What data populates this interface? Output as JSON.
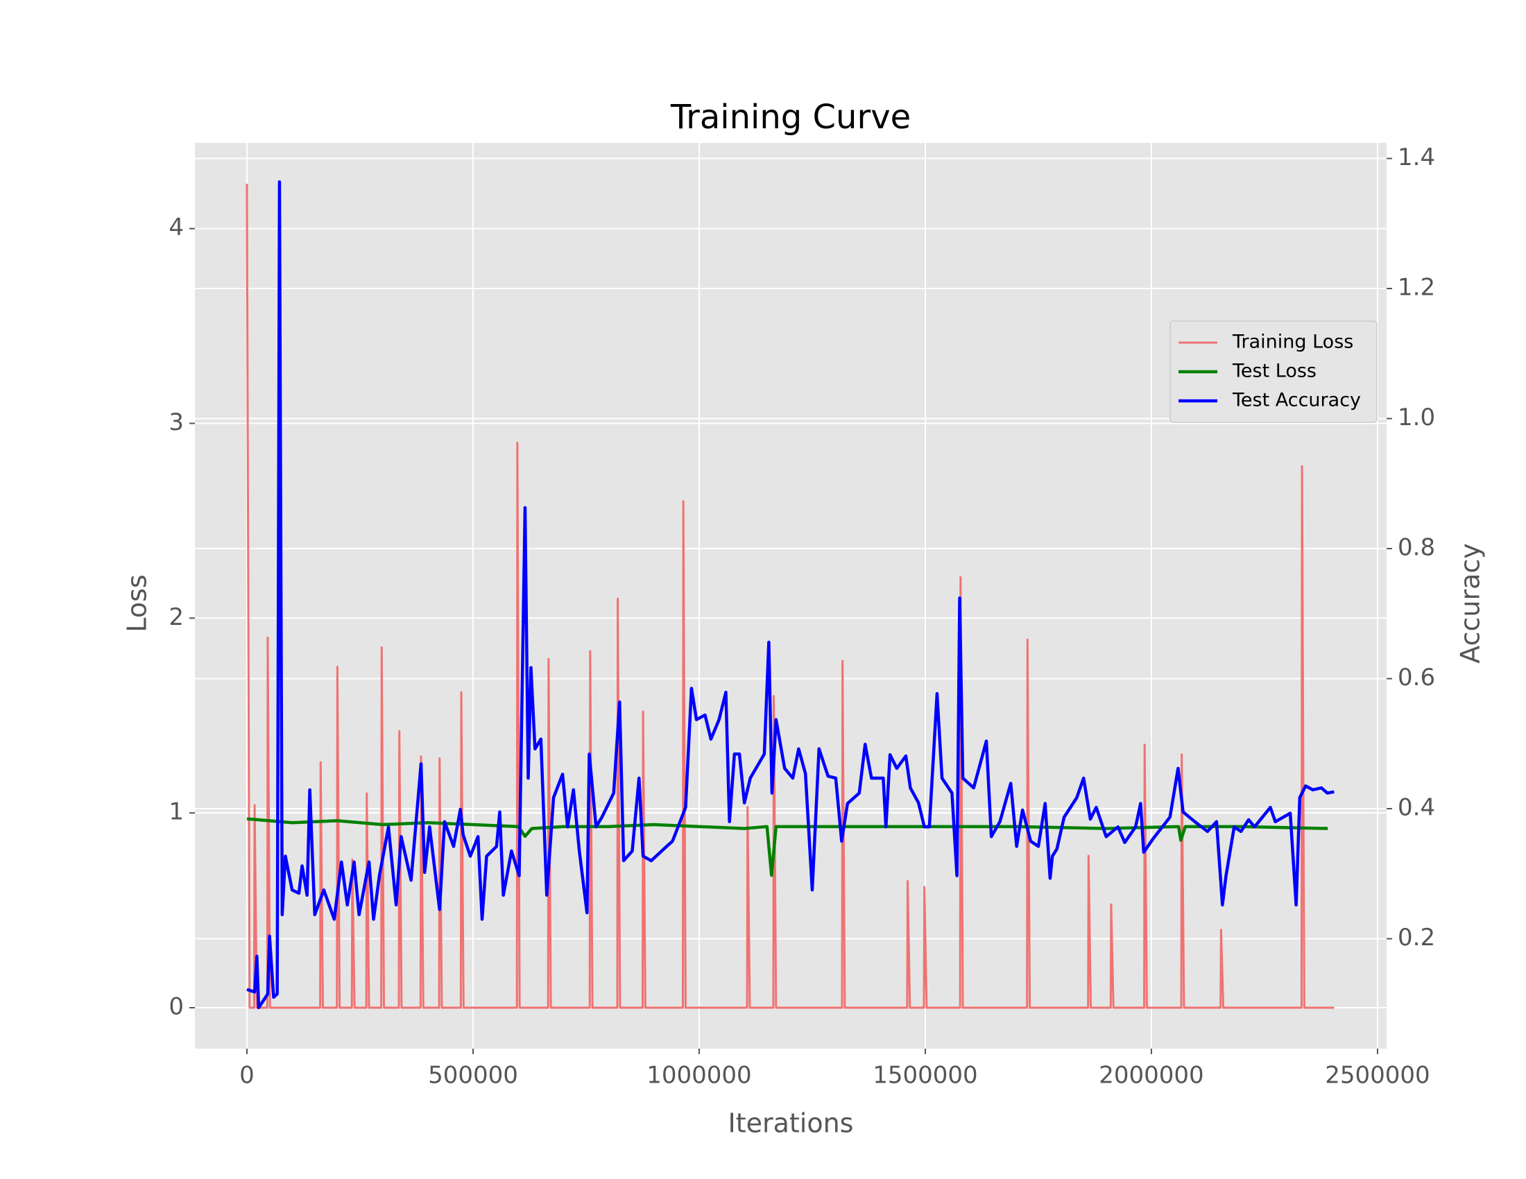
{
  "chart_data": {
    "type": "line",
    "title": "Training Curve",
    "x_label": "Iterations",
    "y_label": "Loss",
    "y2_label": "Accuracy",
    "xlim": [
      -115000,
      2520000
    ],
    "xticks": [
      0,
      500000,
      1000000,
      1500000,
      2000000,
      2500000
    ],
    "ylim": [
      -0.21,
      4.44
    ],
    "yticks": [
      0,
      1,
      2,
      3,
      4
    ],
    "y2lim": [
      0.031,
      1.424
    ],
    "y2ticks": [
      0.2,
      0.4,
      0.6,
      0.8,
      {
        "value": 1.0,
        "label": "1.0"
      },
      1.2,
      1.4
    ],
    "grid": true,
    "legend": "center right",
    "series": [
      {
        "name": "Training Loss",
        "color": "#f07272",
        "x": [
          0,
          6000,
          16000,
          17000,
          22000,
          45000,
          46000,
          51000,
          162000,
          163000,
          168000,
          199000,
          200000,
          205000,
          232000,
          233000,
          238000,
          264000,
          265000,
          270000,
          297000,
          298000,
          303000,
          336000,
          337000,
          342000,
          384000,
          385000,
          390000,
          425000,
          426000,
          431000,
          473000,
          474000,
          479000,
          597000,
          598000,
          603000,
          666000,
          667000,
          672000,
          758000,
          759000,
          764000,
          819000,
          820000,
          825000,
          875000,
          876000,
          881000,
          964000,
          965000,
          970000,
          1106000,
          1107000,
          1112000,
          1164000,
          1165000,
          1170000,
          1316000,
          1317000,
          1322000,
          1460000,
          1461000,
          1466000,
          1497000,
          1498000,
          1503000,
          1577000,
          1578000,
          1583000,
          1725000,
          1726000,
          1731000,
          1860000,
          1861000,
          1866000,
          1910000,
          1911000,
          1916000,
          1984000,
          1985000,
          1990000,
          2066000,
          2067000,
          2072000,
          2153000,
          2154000,
          2159000,
          2332000,
          2333000,
          2338000,
          2404000
        ],
        "values": [
          4.23,
          0,
          0,
          1.04,
          0,
          0,
          1.9,
          0,
          0,
          1.26,
          0,
          0,
          1.75,
          0,
          0,
          0.76,
          0,
          0,
          1.1,
          0,
          0,
          1.85,
          0,
          0,
          1.42,
          0,
          0,
          1.29,
          0,
          0,
          1.28,
          0,
          0,
          1.62,
          0,
          0,
          2.9,
          0,
          0,
          1.79,
          0,
          0,
          1.83,
          0,
          0,
          2.1,
          0,
          0,
          1.52,
          0,
          0,
          2.6,
          0,
          0,
          1.03,
          0,
          0,
          1.6,
          0,
          0,
          1.78,
          0,
          0,
          0.65,
          0,
          0,
          0.62,
          0,
          0,
          2.21,
          0,
          0,
          1.89,
          0,
          0,
          0.78,
          0,
          0,
          0.53,
          0,
          0,
          1.35,
          0,
          0,
          1.3,
          0,
          0,
          0.4,
          0,
          0,
          2.78,
          0,
          0
        ]
      },
      {
        "name": "Test Loss",
        "color": "#008000",
        "x": [
          0,
          100000,
          200000,
          300000,
          400000,
          500000,
          600000,
          615000,
          630000,
          700000,
          800000,
          900000,
          1000000,
          1100000,
          1150000,
          1160000,
          1170000,
          1300000,
          1500000,
          1700000,
          1900000,
          2060000,
          2065000,
          2075000,
          2200000,
          2390000
        ],
        "values": [
          0.97,
          0.95,
          0.96,
          0.94,
          0.95,
          0.94,
          0.93,
          0.88,
          0.92,
          0.93,
          0.93,
          0.94,
          0.93,
          0.92,
          0.93,
          0.68,
          0.93,
          0.93,
          0.93,
          0.93,
          0.92,
          0.93,
          0.86,
          0.93,
          0.93,
          0.92
        ]
      },
      {
        "name": "Test Accuracy",
        "color": "#0000ff",
        "axis": "y2",
        "x": [
          0,
          17000,
          22000,
          26000,
          46000,
          50000,
          59000,
          67000,
          72000,
          78000,
          85000,
          100000,
          115000,
          122000,
          133000,
          139000,
          150000,
          170000,
          193000,
          209000,
          222000,
          237000,
          248000,
          270000,
          280000,
          293000,
          313000,
          330000,
          341000,
          363000,
          385000,
          393000,
          404000,
          426000,
          437000,
          457000,
          472000,
          478000,
          494000,
          511000,
          520000,
          530000,
          552000,
          559000,
          567000,
          585000,
          602000,
          615000,
          622000,
          628000,
          637000,
          650000,
          663000,
          678000,
          698000,
          709000,
          722000,
          735000,
          752000,
          757000,
          772000,
          785000,
          811000,
          824000,
          833000,
          852000,
          867000,
          876000,
          894000,
          928000,
          941000,
          970000,
          983000,
          994000,
          1013000,
          1026000,
          1044000,
          1059000,
          1067000,
          1078000,
          1089000,
          1100000,
          1113000,
          1144000,
          1154000,
          1161000,
          1170000,
          1189000,
          1207000,
          1220000,
          1235000,
          1250000,
          1265000,
          1285000,
          1302000,
          1315000,
          1328000,
          1354000,
          1367000,
          1381000,
          1407000,
          1413000,
          1422000,
          1437000,
          1457000,
          1467000,
          1485000,
          1498000,
          1509000,
          1526000,
          1537000,
          1559000,
          1570000,
          1576000,
          1583000,
          1607000,
          1635000,
          1646000,
          1665000,
          1689000,
          1702000,
          1715000,
          1733000,
          1750000,
          1765000,
          1776000,
          1781000,
          1791000,
          1807000,
          1835000,
          1850000,
          1865000,
          1878000,
          1900000,
          1926000,
          1941000,
          1965000,
          1976000,
          1983000,
          2004000,
          2041000,
          2059000,
          2070000,
          2096000,
          2124000,
          2144000,
          2157000,
          2165000,
          2183000,
          2198000,
          2215000,
          2228000,
          2263000,
          2274000,
          2307000,
          2320000,
          2328000,
          2341000,
          2357000,
          2376000,
          2389000,
          2404000
        ],
        "values": [
          0.122,
          0.118,
          0.173,
          0.094,
          0.115,
          0.204,
          0.11,
          0.115,
          1.364,
          0.237,
          0.327,
          0.275,
          0.27,
          0.312,
          0.267,
          0.429,
          0.237,
          0.275,
          0.23,
          0.318,
          0.252,
          0.318,
          0.237,
          0.318,
          0.23,
          0.297,
          0.372,
          0.252,
          0.357,
          0.29,
          0.469,
          0.302,
          0.372,
          0.245,
          0.38,
          0.342,
          0.399,
          0.36,
          0.327,
          0.357,
          0.23,
          0.327,
          0.342,
          0.395,
          0.267,
          0.335,
          0.297,
          0.863,
          0.447,
          0.617,
          0.492,
          0.507,
          0.267,
          0.417,
          0.453,
          0.372,
          0.429,
          0.335,
          0.24,
          0.484,
          0.372,
          0.387,
          0.424,
          0.564,
          0.32,
          0.335,
          0.447,
          0.327,
          0.32,
          0.342,
          0.35,
          0.402,
          0.585,
          0.537,
          0.544,
          0.507,
          0.537,
          0.579,
          0.38,
          0.484,
          0.484,
          0.409,
          0.447,
          0.484,
          0.656,
          0.424,
          0.537,
          0.462,
          0.447,
          0.492,
          0.454,
          0.275,
          0.492,
          0.45,
          0.447,
          0.35,
          0.408,
          0.424,
          0.499,
          0.447,
          0.447,
          0.372,
          0.483,
          0.462,
          0.481,
          0.432,
          0.409,
          0.372,
          0.372,
          0.577,
          0.447,
          0.424,
          0.297,
          0.724,
          0.447,
          0.432,
          0.504,
          0.357,
          0.38,
          0.439,
          0.342,
          0.398,
          0.35,
          0.342,
          0.408,
          0.293,
          0.327,
          0.338,
          0.387,
          0.417,
          0.447,
          0.384,
          0.402,
          0.357,
          0.372,
          0.348,
          0.372,
          0.408,
          0.333,
          0.354,
          0.387,
          0.462,
          0.395,
          0.38,
          0.365,
          0.38,
          0.252,
          0.297,
          0.372,
          0.365,
          0.383,
          0.372,
          0.402,
          0.38,
          0.393,
          0.252,
          0.417,
          0.435,
          0.429,
          0.432,
          0.424,
          0.426
        ]
      }
    ]
  }
}
